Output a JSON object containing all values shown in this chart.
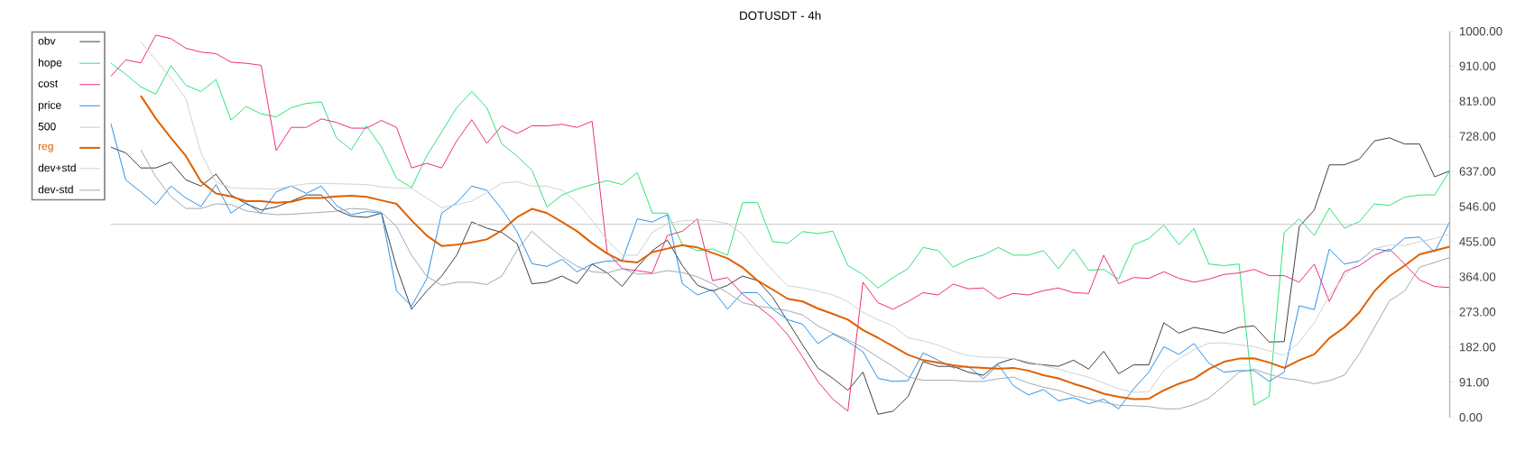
{
  "chart_data": {
    "type": "line",
    "title": "DOTUSDT - 4h",
    "categories": [
      null,
      null,
      null,
      null,
      null,
      null,
      null,
      null,
      null,
      null,
      null,
      null,
      null,
      null,
      null,
      null,
      null,
      null,
      null,
      null,
      null,
      null,
      null,
      null,
      null,
      null,
      null,
      null,
      null,
      null,
      null,
      null,
      null,
      null,
      null,
      null,
      null,
      null,
      null,
      null,
      null,
      null,
      null,
      null,
      null,
      null,
      null,
      null,
      null,
      null,
      null,
      null,
      null,
      null,
      null,
      null,
      null,
      null,
      null,
      null,
      null,
      null,
      null,
      null,
      null,
      null,
      null,
      null,
      null,
      null,
      null,
      null,
      null,
      null,
      null,
      null,
      null,
      null,
      null,
      null,
      null,
      null,
      null,
      null,
      null,
      null,
      null,
      null,
      null,
      null
    ],
    "series": [
      {
        "name": "obv",
        "color": "#333333",
        "values": [
          700,
          685,
          646,
          646,
          661,
          615,
          599,
          630,
          576,
          553,
          537,
          545,
          560,
          576,
          576,
          537,
          521,
          518,
          529,
          389,
          280,
          327,
          366,
          420,
          506,
          490,
          479,
          451,
          346,
          350,
          366,
          346,
          397,
          374,
          339,
          389,
          432,
          459,
          393,
          342,
          327,
          342,
          366,
          354,
          311,
          249,
          187,
          128,
          101,
          70,
          117,
          8,
          16,
          54,
          144,
          132,
          132,
          117,
          109,
          140,
          152,
          140,
          136,
          132,
          148,
          125,
          171,
          113,
          136,
          136,
          245,
          218,
          233,
          226,
          218,
          233,
          237,
          195,
          196,
          494,
          537,
          654,
          654,
          669,
          716,
          724,
          708,
          708,
          623,
          638
        ]
      },
      {
        "name": "hope",
        "color": "#1ee06e",
        "values": [
          918,
          889,
          856,
          837,
          911,
          860,
          844,
          875,
          770,
          805,
          786,
          778,
          802,
          813,
          817,
          724,
          693,
          755,
          700,
          619,
          595,
          677,
          739,
          802,
          844,
          802,
          708,
          677,
          640,
          545,
          576,
          591,
          603,
          613,
          603,
          634,
          529,
          529,
          447,
          432,
          436,
          420,
          556,
          556,
          455,
          451,
          481,
          476,
          482,
          393,
          370,
          335,
          362,
          385,
          440,
          432,
          389,
          409,
          420,
          440,
          420,
          420,
          432,
          385,
          436,
          381,
          383,
          358,
          447,
          463,
          498,
          447,
          489,
          397,
          393,
          397,
          31,
          54,
          479,
          514,
          471,
          542,
          490,
          507,
          553,
          549,
          570,
          576,
          576,
          638
        ]
      },
      {
        "name": "cost",
        "color": "#e91e7c",
        "values": [
          883,
          926,
          918,
          990,
          981,
          956,
          946,
          942,
          920,
          917,
          912,
          691,
          751,
          751,
          773,
          764,
          749,
          749,
          769,
          751,
          646,
          658,
          646,
          716,
          771,
          710,
          755,
          735,
          755,
          755,
          759,
          751,
          767,
          428,
          385,
          380,
          374,
          471,
          482,
          514,
          354,
          362,
          319,
          288,
          257,
          214,
          156,
          93,
          47,
          16,
          350,
          297,
          280,
          300,
          323,
          317,
          345,
          333,
          335,
          307,
          321,
          317,
          328,
          335,
          323,
          321,
          420,
          346,
          362,
          360,
          377,
          360,
          350,
          358,
          370,
          374,
          383,
          367,
          367,
          350,
          397,
          300,
          377,
          393,
          420,
          436,
          397,
          356,
          339,
          336
        ]
      },
      {
        "name": "price",
        "color": "#1e88e5",
        "values": [
          763,
          615,
          584,
          551,
          599,
          568,
          546,
          603,
          529,
          556,
          528,
          584,
          599,
          580,
          599,
          549,
          525,
          533,
          529,
          327,
          288,
          358,
          529,
          556,
          599,
          588,
          539,
          482,
          398,
          391,
          409,
          377,
          397,
          405,
          406,
          514,
          506,
          525,
          346,
          317,
          331,
          280,
          323,
          323,
          280,
          253,
          241,
          191,
          216,
          196,
          170,
          101,
          93,
          95,
          167,
          148,
          128,
          132,
          100,
          136,
          82,
          58,
          72,
          43,
          51,
          35,
          47,
          22,
          74,
          117,
          183,
          163,
          191,
          140,
          117,
          121,
          121,
          93,
          117,
          289,
          279,
          436,
          397,
          405,
          437,
          430,
          464,
          467,
          428,
          506
        ]
      },
      {
        "name": "500",
        "color": "#c4c4c4",
        "values": [
          500,
          500,
          500,
          500,
          500,
          500,
          500,
          500,
          500,
          500,
          500,
          500,
          500,
          500,
          500,
          500,
          500,
          500,
          500,
          500,
          500,
          500,
          500,
          500,
          500,
          500,
          500,
          500,
          500,
          500,
          500,
          500,
          500,
          500,
          500,
          500,
          500,
          500,
          500,
          500,
          500,
          500,
          500,
          500,
          500,
          500,
          500,
          500,
          500,
          500,
          500,
          500,
          500,
          500,
          500,
          500,
          500,
          500,
          500,
          500,
          500,
          500,
          500,
          500,
          500,
          500,
          500,
          500,
          500,
          500,
          500,
          500,
          500,
          500,
          500,
          500,
          500,
          500,
          500,
          500,
          500,
          500,
          500,
          500,
          500,
          500,
          500,
          500,
          500,
          500
        ]
      },
      {
        "name": "reg",
        "color": "#e06000",
        "values": [
          null,
          null,
          833,
          774,
          724,
          677,
          611,
          580,
          572,
          560,
          560,
          556,
          558,
          568,
          568,
          572,
          574,
          571,
          562,
          553,
          510,
          471,
          444,
          447,
          453,
          461,
          484,
          518,
          540,
          529,
          506,
          482,
          451,
          424,
          405,
          401,
          428,
          437,
          446,
          440,
          426,
          412,
          388,
          354,
          331,
          307,
          300,
          282,
          268,
          253,
          226,
          206,
          184,
          162,
          148,
          142,
          135,
          130,
          128,
          126,
          128,
          121,
          109,
          101,
          87,
          75,
          61,
          53,
          47,
          48,
          70,
          87,
          100,
          125,
          144,
          152,
          153,
          142,
          128,
          148,
          163,
          205,
          233,
          272,
          327,
          366,
          393,
          422,
          432,
          442
        ]
      },
      {
        "name": "dev+std",
        "color": "#c9ced3",
        "values": [
          null,
          null,
          973,
          926,
          879,
          825,
          685,
          609,
          595,
          593,
          592,
          591,
          599,
          605,
          606,
          605,
          604,
          603,
          597,
          594,
          593,
          568,
          543,
          551,
          560,
          582,
          607,
          610,
          599,
          599,
          588,
          556,
          510,
          459,
          420,
          420,
          479,
          502,
          509,
          511,
          509,
          502,
          475,
          424,
          381,
          341,
          335,
          327,
          317,
          300,
          272,
          253,
          237,
          206,
          198,
          187,
          171,
          160,
          156,
          155,
          152,
          144,
          134,
          125,
          114,
          104,
          89,
          74,
          65,
          66,
          121,
          152,
          175,
          192,
          193,
          188,
          183,
          172,
          160,
          195,
          245,
          315,
          366,
          406,
          437,
          446,
          445,
          455,
          463,
          475
        ]
      },
      {
        "name": "dev-std",
        "color": "#9aa3ad",
        "values": [
          null,
          null,
          693,
          623,
          572,
          541,
          541,
          553,
          551,
          535,
          529,
          525,
          526,
          529,
          531,
          534,
          541,
          539,
          531,
          494,
          420,
          366,
          342,
          350,
          350,
          344,
          366,
          432,
          482,
          447,
          416,
          391,
          377,
          374,
          385,
          371,
          372,
          380,
          375,
          364,
          346,
          323,
          297,
          288,
          283,
          276,
          265,
          237,
          218,
          201,
          181,
          156,
          132,
          105,
          96,
          96,
          96,
          93,
          93,
          100,
          104,
          89,
          78,
          70,
          56,
          47,
          39,
          31,
          30,
          28,
          22,
          22,
          33,
          50,
          83,
          117,
          125,
          111,
          101,
          96,
          87,
          95,
          109,
          165,
          233,
          302,
          327,
          389,
          401,
          414
        ]
      }
    ],
    "ylim": [
      0,
      1000
    ],
    "yticks": [
      {
        "value": 0,
        "label": "0.00"
      },
      {
        "value": 91,
        "label": "91.00"
      },
      {
        "value": 182,
        "label": "182.00"
      },
      {
        "value": 273,
        "label": "273.00"
      },
      {
        "value": 364,
        "label": "364.00"
      },
      {
        "value": 455,
        "label": "455.00"
      },
      {
        "value": 546,
        "label": "546.00"
      },
      {
        "value": 637,
        "label": "637.00"
      },
      {
        "value": 728,
        "label": "728.00"
      },
      {
        "value": 819,
        "label": "819.00"
      },
      {
        "value": 910,
        "label": "910.00"
      },
      {
        "value": 1000,
        "label": "1000.00"
      }
    ],
    "tick_labels": "y",
    "legend": "left"
  }
}
